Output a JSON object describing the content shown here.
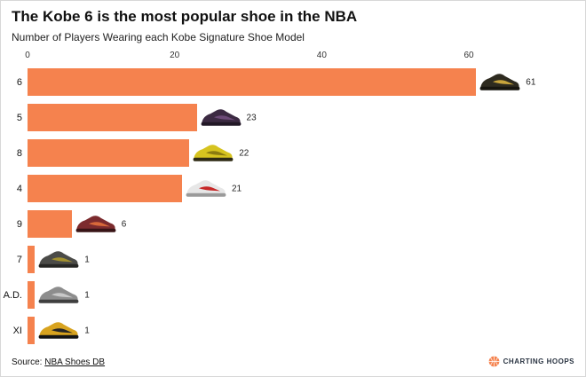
{
  "header": {
    "title": "The Kobe 6 is the most popular shoe in the NBA",
    "subtitle": "Number of Players Wearing each Kobe Signature Shoe Model"
  },
  "chart_data": {
    "type": "bar",
    "orientation": "horizontal",
    "title": "The Kobe 6 is the most popular shoe in the NBA",
    "subtitle": "Number of Players Wearing each Kobe Signature Shoe Model",
    "categories": [
      "6",
      "5",
      "8",
      "4",
      "9",
      "7",
      "A.D.",
      "XI"
    ],
    "values": [
      61,
      23,
      22,
      21,
      6,
      1,
      1,
      1
    ],
    "value_labels": [
      "61",
      "23",
      "22",
      "21",
      "6",
      "1",
      "1",
      "1"
    ],
    "x_ticks": [
      0,
      20,
      40,
      60
    ],
    "xlim": [
      0,
      74
    ],
    "bar_color": "#F5824E",
    "grid": false,
    "legend": "none",
    "shoe_icons": [
      {
        "name": "kobe-6-shoe-icon",
        "body": "#2e2b20",
        "accent": "#c9a53c",
        "sole": "#17150f"
      },
      {
        "name": "kobe-5-shoe-icon",
        "body": "#3c2a42",
        "accent": "#6d4a78",
        "sole": "#221826"
      },
      {
        "name": "kobe-8-shoe-icon",
        "body": "#d6c31f",
        "accent": "#8a7a10",
        "sole": "#2e2a14"
      },
      {
        "name": "kobe-4-shoe-icon",
        "body": "#e7e7e7",
        "accent": "#c62828",
        "sole": "#9a9a9a"
      },
      {
        "name": "kobe-9-shoe-icon",
        "body": "#7c2b2e",
        "accent": "#d8693a",
        "sole": "#381416"
      },
      {
        "name": "kobe-7-shoe-icon",
        "body": "#4b4b48",
        "accent": "#a3912f",
        "sole": "#262624"
      },
      {
        "name": "kobe-ad-shoe-icon",
        "body": "#8d8d8d",
        "accent": "#c9c9c9",
        "sole": "#3f3f3f"
      },
      {
        "name": "kobe-11-shoe-icon",
        "body": "#d8a31f",
        "accent": "#262626",
        "sole": "#151515"
      }
    ]
  },
  "footer": {
    "source_prefix": "Source: ",
    "source_link": "NBA Shoes DB",
    "brand": "CHARTING HOOPS",
    "brand_color": "#F5824E"
  }
}
